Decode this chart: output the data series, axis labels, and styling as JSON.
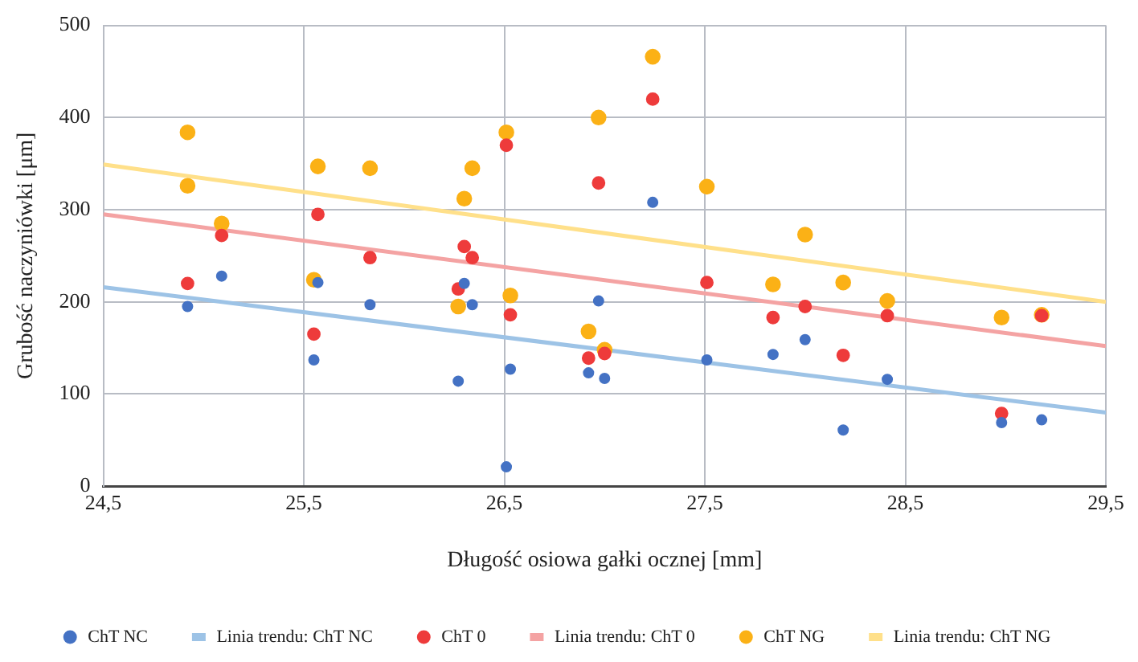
{
  "chart_data": {
    "type": "scatter",
    "xlabel": "Długość osiowa gałki ocznej [mm]",
    "ylabel": "Grubość naczyniówki [μm]",
    "xlim": [
      24.5,
      29.5
    ],
    "ylim": [
      0,
      500
    ],
    "xticks": [
      {
        "value": 24.5,
        "label": "24,5"
      },
      {
        "value": 25.5,
        "label": "25,5"
      },
      {
        "value": 26.5,
        "label": "26,5"
      },
      {
        "value": 27.5,
        "label": "27,5"
      },
      {
        "value": 28.5,
        "label": "28,5"
      },
      {
        "value": 29.5,
        "label": "29,5"
      }
    ],
    "yticks": [
      0,
      100,
      200,
      300,
      400,
      500
    ],
    "grid": true,
    "legend": "bottom",
    "marker": "circle",
    "series": [
      {
        "name": "ChT NC",
        "color": "#4472c4",
        "x": [
          24.92,
          25.09,
          25.57,
          25.55,
          25.83,
          26.3,
          26.34,
          26.27,
          26.53,
          26.51,
          26.97,
          26.92,
          27.0,
          27.24,
          27.51,
          27.84,
          28.0,
          28.19,
          28.41,
          28.98,
          29.18
        ],
        "values": [
          195,
          228,
          221,
          137,
          197,
          220,
          197,
          114,
          127,
          21,
          201,
          123,
          117,
          308,
          137,
          143,
          159,
          61,
          116,
          69,
          72
        ]
      },
      {
        "name": "Linia trendu: ChT NC",
        "type": "line",
        "marker": "none",
        "color": "#9dc3e6",
        "x": [
          24.5,
          29.5
        ],
        "values": [
          216,
          80
        ]
      },
      {
        "name": "ChT 0",
        "color": "#ee3b3b",
        "x": [
          24.92,
          25.09,
          25.57,
          25.55,
          25.83,
          26.3,
          26.34,
          26.27,
          26.51,
          26.53,
          26.97,
          26.92,
          27.0,
          27.24,
          27.51,
          27.84,
          28.0,
          28.19,
          28.41,
          28.98,
          29.18
        ],
        "values": [
          220,
          272,
          295,
          165,
          248,
          260,
          248,
          214,
          370,
          186,
          329,
          139,
          144,
          420,
          221,
          183,
          195,
          142,
          185,
          79,
          185
        ]
      },
      {
        "name": "Linia trendu: ChT 0",
        "type": "line",
        "marker": "none",
        "color": "#f4a3a3",
        "x": [
          24.5,
          29.5
        ],
        "values": [
          295,
          152
        ]
      },
      {
        "name": "ChT NG",
        "color": "#fbb116",
        "x": [
          24.92,
          24.92,
          25.09,
          25.57,
          25.55,
          25.83,
          26.34,
          26.3,
          26.27,
          26.51,
          26.53,
          26.97,
          26.92,
          27.0,
          27.24,
          27.51,
          27.84,
          28.0,
          28.19,
          28.41,
          28.98,
          29.18
        ],
        "values": [
          384,
          326,
          285,
          347,
          224,
          345,
          345,
          312,
          195,
          384,
          207,
          400,
          168,
          148,
          466,
          325,
          219,
          273,
          221,
          201,
          183,
          186
        ]
      },
      {
        "name": "Linia trendu: ChT NG",
        "type": "line",
        "marker": "none",
        "color": "#ffe08a",
        "x": [
          24.5,
          29.5
        ],
        "values": [
          349,
          200
        ]
      }
    ]
  }
}
